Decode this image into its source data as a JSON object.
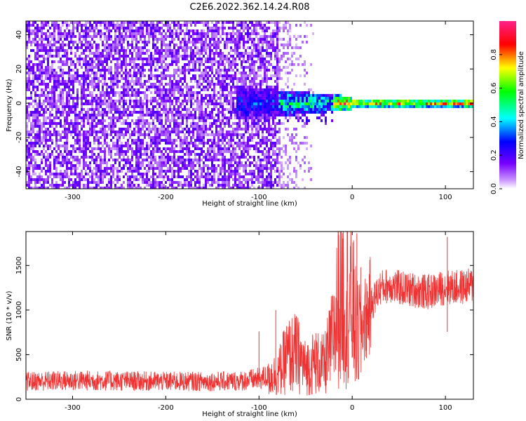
{
  "figure_title": "C2E6.2022.362.14.24.R08",
  "chart_data": [
    {
      "type": "heatmap",
      "title": "",
      "xlabel": "Height of straight line (km)",
      "ylabel": "Frequency (Hz)",
      "xlim": [
        -350,
        130
      ],
      "ylim": [
        -50,
        48
      ],
      "xticks": [
        -300,
        -200,
        -100,
        0,
        100
      ],
      "xtick_labels": [
        "-300",
        "-200",
        "-100",
        "0",
        "100"
      ],
      "yticks": [
        -40,
        -20,
        0,
        20,
        40
      ],
      "ytick_labels": [
        "-40",
        "-20",
        "0",
        "20",
        "40"
      ],
      "colorbar": {
        "label": "Normalized spectral amplitude",
        "range": [
          0,
          1
        ],
        "ticks": [
          0.0,
          0.2,
          0.4,
          0.6,
          0.8
        ],
        "tick_labels": [
          "0.0",
          "0.2",
          "0.4",
          "0.6",
          "0.8"
        ],
        "colormap": "rainbow (white → violet → blue → cyan → green → yellow → red → pink)"
      },
      "features": [
        {
          "description": "broadband noise across all frequencies",
          "x_range": [
            -350,
            -80
          ],
          "amplitude": [
            0.05,
            0.2
          ]
        },
        {
          "description": "sparse noise fading out",
          "x_range": [
            -80,
            -40
          ],
          "amplitude": [
            0.0,
            0.1
          ]
        },
        {
          "description": "signal band centred near 0 Hz",
          "x_range": [
            -125,
            130
          ],
          "freq_center": 0,
          "amplitude": [
            0.3,
            1.0
          ]
        }
      ]
    },
    {
      "type": "line",
      "title": "",
      "xlabel": "Height of straight line (km)",
      "ylabel": "SNR (10 * v/v)",
      "xlim": [
        -350,
        130
      ],
      "ylim": [
        0,
        1880
      ],
      "xticks": [
        -300,
        -200,
        -100,
        0,
        100
      ],
      "xtick_labels": [
        "-300",
        "-200",
        "-100",
        "0",
        "100"
      ],
      "yticks": [
        0,
        500,
        1000,
        1500
      ],
      "ytick_labels": [
        "0",
        "500",
        "1000",
        "1500"
      ],
      "color": "#ef3333",
      "series": [
        {
          "x": [
            -350,
            -300,
            -250,
            -200,
            -150,
            -120,
            -100,
            -80,
            -70,
            -60,
            -50,
            -40,
            -30,
            -20,
            -15,
            -10,
            -5,
            0,
            5,
            10,
            20,
            30,
            40,
            50,
            60,
            70,
            80,
            90,
            100,
            110,
            120,
            130
          ],
          "y": [
            200,
            210,
            205,
            200,
            200,
            205,
            230,
            280,
            480,
            520,
            350,
            420,
            380,
            700,
            1100,
            1150,
            1100,
            1050,
            700,
            800,
            1050,
            1250,
            1280,
            1250,
            1230,
            1220,
            1200,
            1220,
            1260,
            1250,
            1260,
            1280
          ]
        }
      ],
      "spikes": [
        {
          "x": -100,
          "y": 760
        },
        {
          "x": -82,
          "y": 1000
        },
        {
          "x": -15,
          "y": 1880
        },
        {
          "x": -10,
          "y": 1800
        },
        {
          "x": 5,
          "y": 1860
        },
        {
          "x": 102,
          "y": 1820
        }
      ]
    }
  ]
}
